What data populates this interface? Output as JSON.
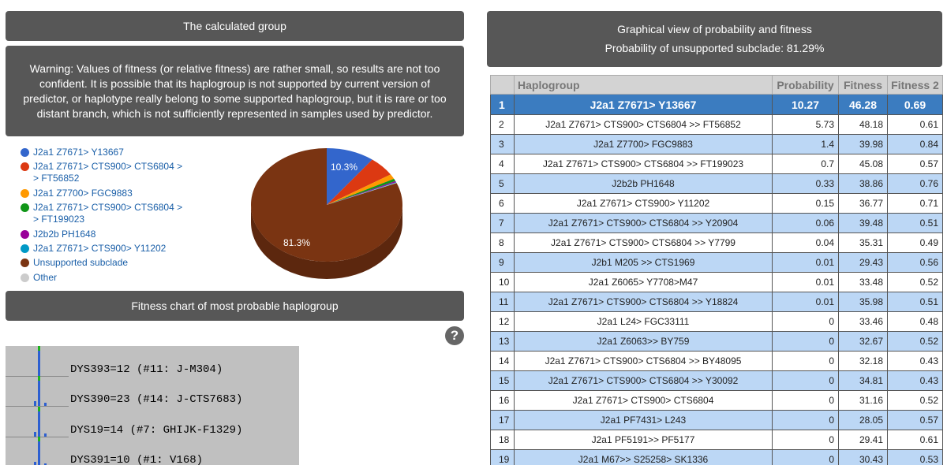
{
  "calc_header": "The calculated group",
  "warning": "Warning: Values of fitness (or relative fitness) are rather small, so results are not too confident. It is possible that its haplogroup is not supported by current version of predictor, or haplotype really belong to some supported haplogroup, but it is rare or too distant branch, which is not sufficiently represented in samples used by predictor.",
  "fitness_header": "Fitness chart of most probable haplogroup",
  "graph_header": {
    "title": "Graphical view of probability and fitness",
    "subtitle": "Probability of unsupported subclade: 81.29%"
  },
  "legend": [
    {
      "label": "J2a1 Z7671> Y13667",
      "color": "#3366cc"
    },
    {
      "label": "J2a1 Z7671> CTS900> CTS6804 >\n> FT56852",
      "color": "#dc3912"
    },
    {
      "label": "J2a1 Z7700> FGC9883",
      "color": "#ff9900"
    },
    {
      "label": "J2a1 Z7671> CTS900> CTS6804 >\n> FT199023",
      "color": "#109618"
    },
    {
      "label": "J2b2b PH1648",
      "color": "#990099"
    },
    {
      "label": "J2a1 Z7671> CTS900> Y11202",
      "color": "#0099c6"
    },
    {
      "label": "Unsupported subclade",
      "color": "#7a3412"
    },
    {
      "label": "Other",
      "color": "#cccccc"
    }
  ],
  "chart_data": {
    "type": "pie",
    "slices": [
      {
        "name": "J2a1 Z7671> Y13667",
        "value": 10.27,
        "color": "#3366cc",
        "label": "10.3%"
      },
      {
        "name": "J2a1 Z7671> CTS900> CTS6804 >> FT56852",
        "value": 5.73,
        "color": "#dc3912"
      },
      {
        "name": "J2a1 Z7700> FGC9883",
        "value": 1.4,
        "color": "#ff9900"
      },
      {
        "name": "J2a1 Z7671> CTS900> CTS6804 >> FT199023",
        "value": 0.7,
        "color": "#109618"
      },
      {
        "name": "J2b2b PH1648",
        "value": 0.33,
        "color": "#990099"
      },
      {
        "name": "J2a1 Z7671> CTS900> Y11202",
        "value": 0.15,
        "color": "#0099c6"
      },
      {
        "name": "Other",
        "value": 0.13,
        "color": "#cccccc"
      },
      {
        "name": "Unsupported subclade",
        "value": 81.29,
        "color": "#7a3412",
        "label": "81.3%"
      }
    ]
  },
  "fitness_chart": [
    {
      "label": "DYS393=12 (#11: J-M304)"
    },
    {
      "label": "DYS390=23 (#14: J-CTS7683)"
    },
    {
      "label": "DYS19=14 (#7: GHIJK-F1329)"
    },
    {
      "label": "DYS391=10 (#1: V168)"
    }
  ],
  "help_icon": "?",
  "table": {
    "headers": [
      "",
      "Haplogroup",
      "Probability",
      "Fitness",
      "Fitness 2"
    ],
    "rows": [
      [
        "1",
        "J2a1 Z7671> Y13667",
        "10.27",
        "46.28",
        "0.69"
      ],
      [
        "2",
        "J2a1 Z7671> CTS900> CTS6804 >> FT56852",
        "5.73",
        "48.18",
        "0.61"
      ],
      [
        "3",
        "J2a1 Z7700> FGC9883",
        "1.4",
        "39.98",
        "0.84"
      ],
      [
        "4",
        "J2a1 Z7671> CTS900> CTS6804 >> FT199023",
        "0.7",
        "45.08",
        "0.57"
      ],
      [
        "5",
        "J2b2b PH1648",
        "0.33",
        "38.86",
        "0.76"
      ],
      [
        "6",
        "J2a1 Z7671> CTS900> Y11202",
        "0.15",
        "36.77",
        "0.71"
      ],
      [
        "7",
        "J2a1 Z7671> CTS900> CTS6804 >> Y20904",
        "0.06",
        "39.48",
        "0.51"
      ],
      [
        "8",
        "J2a1 Z7671> CTS900> CTS6804 >> Y7799",
        "0.04",
        "35.31",
        "0.49"
      ],
      [
        "9",
        "J2b1 M205 >> CTS1969",
        "0.01",
        "29.43",
        "0.56"
      ],
      [
        "10",
        "J2a1 Z6065> Y7708>M47",
        "0.01",
        "33.48",
        "0.52"
      ],
      [
        "11",
        "J2a1 Z7671> CTS900> CTS6804 >> Y18824",
        "0.01",
        "35.98",
        "0.51"
      ],
      [
        "12",
        "J2a1 L24> FGC33111",
        "0",
        "33.46",
        "0.48"
      ],
      [
        "13",
        "J2a1 Z6063>> BY759",
        "0",
        "32.67",
        "0.52"
      ],
      [
        "14",
        "J2a1 Z7671> CTS900> CTS6804 >> BY48095",
        "0",
        "32.18",
        "0.43"
      ],
      [
        "15",
        "J2a1 Z7671> CTS900> CTS6804 >> Y30092",
        "0",
        "34.81",
        "0.43"
      ],
      [
        "16",
        "J2a1 Z7671> CTS900> CTS6804",
        "0",
        "31.16",
        "0.52"
      ],
      [
        "17",
        "J2a1 PF7431> L243",
        "0",
        "28.05",
        "0.57"
      ],
      [
        "18",
        "J2a1 PF5191>> PF5177",
        "0",
        "29.41",
        "0.61"
      ],
      [
        "19",
        "J2a1 M67>> S25258> SK1336",
        "0",
        "30.43",
        "0.53"
      ]
    ]
  }
}
